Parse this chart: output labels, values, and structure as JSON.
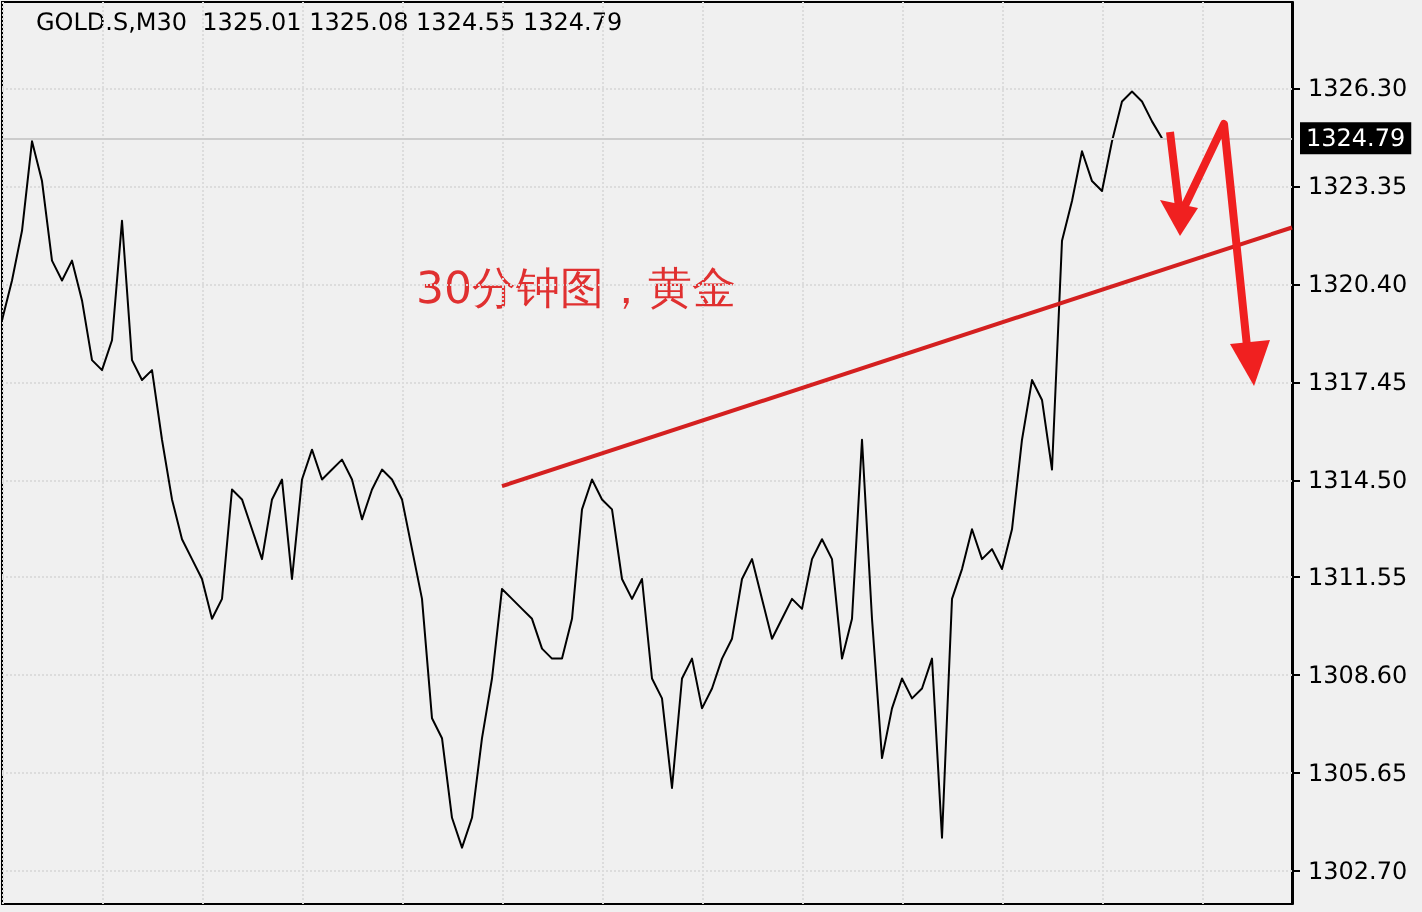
{
  "chart_data": {
    "type": "line",
    "annotations": [
      "GOLD.S,M30  1325.01 1325.08 1324.55 1324.79",
      "30分钟图，黄金"
    ],
    "categories": [
      null,
      null,
      null,
      null,
      null,
      null,
      null,
      null,
      null,
      null,
      null,
      null,
      null,
      null,
      null,
      null,
      null,
      null,
      null,
      null,
      null,
      null,
      null,
      null,
      null,
      null,
      null,
      null,
      null,
      null,
      null,
      null,
      null,
      null,
      null,
      null,
      null,
      null,
      null,
      null,
      null,
      null,
      null,
      null,
      null,
      null,
      null,
      null,
      null,
      null,
      null,
      null,
      null,
      null,
      null,
      null,
      null,
      null,
      null,
      null,
      null,
      null,
      null,
      null,
      null,
      null,
      null,
      null,
      null,
      null,
      null,
      null,
      null,
      null,
      null,
      null,
      null,
      null,
      null,
      null,
      null,
      null,
      null,
      null,
      null,
      null,
      null,
      null,
      null,
      null,
      null,
      null,
      null,
      null,
      null,
      null,
      null,
      null,
      null,
      null,
      null,
      null,
      null,
      null,
      null,
      null,
      null,
      null,
      null,
      null,
      null,
      null,
      null,
      null,
      null,
      null,
      null,
      null,
      null,
      null,
      null,
      null,
      null,
      null,
      null,
      null,
      null,
      null,
      null,
      null
    ],
    "series": [
      {
        "color": "#000000",
        "values": [
          1319.3,
          1320.5,
          1322.0,
          1324.7,
          1323.5,
          1321.1,
          1320.5,
          1321.1,
          1319.9,
          1318.1,
          1317.8,
          1318.7,
          1322.3,
          1318.1,
          1317.5,
          1317.8,
          1315.7,
          1313.9,
          1312.7,
          1312.1,
          1311.5,
          1310.3,
          1310.9,
          1314.2,
          1313.9,
          1313.0,
          1312.1,
          1313.9,
          1314.5,
          1311.5,
          1314.5,
          1315.4,
          1314.5,
          1314.8,
          1315.1,
          1314.5,
          1313.3,
          1314.2,
          1314.8,
          1314.5,
          1313.9,
          1312.4,
          1310.9,
          1307.3,
          1306.7,
          1304.3,
          1303.4,
          1304.3,
          1306.7,
          1308.5,
          1311.2,
          1310.9,
          1310.6,
          1310.3,
          1309.4,
          1309.1,
          1309.1,
          1310.3,
          1313.6,
          1314.5,
          1313.9,
          1313.6,
          1311.5,
          1310.9,
          1311.5,
          1308.5,
          1307.9,
          1305.2,
          1308.5,
          1309.1,
          1307.6,
          1308.2,
          1309.1,
          1309.7,
          1311.5,
          1312.1,
          1310.9,
          1309.7,
          1310.3,
          1310.9,
          1310.6,
          1312.1,
          1312.7,
          1312.1,
          1309.1,
          1310.3,
          1315.7,
          1310.3,
          1306.1,
          1307.6,
          1308.5,
          1307.9,
          1308.2,
          1309.1,
          1303.7,
          1310.9,
          1311.8,
          1313.0,
          1312.1,
          1312.4,
          1311.8,
          1313.0,
          1315.7,
          1317.5,
          1316.9,
          1314.8,
          1321.7,
          1322.9,
          1324.4,
          1323.5,
          1323.2,
          1324.7,
          1325.9,
          1326.2,
          1325.9,
          1325.3,
          1324.79,
          null,
          null,
          null,
          null,
          null,
          null,
          null,
          null,
          null,
          null,
          null,
          null,
          null
        ]
      },
      {
        "color": "#d42020",
        "values": [
          null,
          null,
          null,
          null,
          null,
          null,
          null,
          null,
          null,
          null,
          null,
          null,
          null,
          null,
          null,
          null,
          null,
          null,
          null,
          null,
          null,
          null,
          null,
          null,
          null,
          null,
          null,
          null,
          null,
          null,
          null,
          null,
          null,
          null,
          null,
          null,
          null,
          null,
          null,
          null,
          null,
          null,
          null,
          null,
          null,
          null,
          null,
          null,
          null,
          null,
          1314.3,
          null,
          null,
          null,
          null,
          null,
          null,
          null,
          null,
          null,
          null,
          null,
          null,
          null,
          null,
          null,
          null,
          null,
          null,
          null,
          null,
          null,
          null,
          null,
          null,
          null,
          null,
          null,
          null,
          null,
          null,
          null,
          null,
          null,
          null,
          null,
          null,
          null,
          null,
          null,
          null,
          null,
          null,
          null,
          null,
          null,
          null,
          null,
          null,
          null,
          null,
          null,
          null,
          null,
          null,
          null,
          null,
          null,
          null,
          null,
          null,
          null,
          null,
          null,
          null,
          null,
          null,
          null,
          null,
          null,
          null,
          null,
          null,
          null,
          null,
          null,
          null,
          null,
          null,
          1322.1
        ]
      }
    ],
    "ylim": [
      1301.7,
      1328.9
    ],
    "yticks": [
      {
        "value": 1302.7,
        "label": "1302.70"
      },
      {
        "value": 1305.65,
        "label": "1305.65"
      },
      {
        "value": 1308.6,
        "label": "1308.60"
      },
      {
        "value": 1311.55,
        "label": "1311.55"
      },
      {
        "value": 1314.5,
        "label": "1314.50"
      },
      {
        "value": 1317.45,
        "label": "1317.45"
      },
      {
        "value": 1320.4,
        "label": "1320.40"
      },
      {
        "value": 1323.35,
        "label": "1323.35"
      },
      {
        "value": 1326.3,
        "label": "1326.30"
      }
    ],
    "ref_lines": [
      {
        "axis": "y",
        "value": 1324.79,
        "label": "1324.79",
        "color": "#cccccc"
      }
    ],
    "tick_labels": "y",
    "grid": true,
    "line_style": "solid"
  }
}
